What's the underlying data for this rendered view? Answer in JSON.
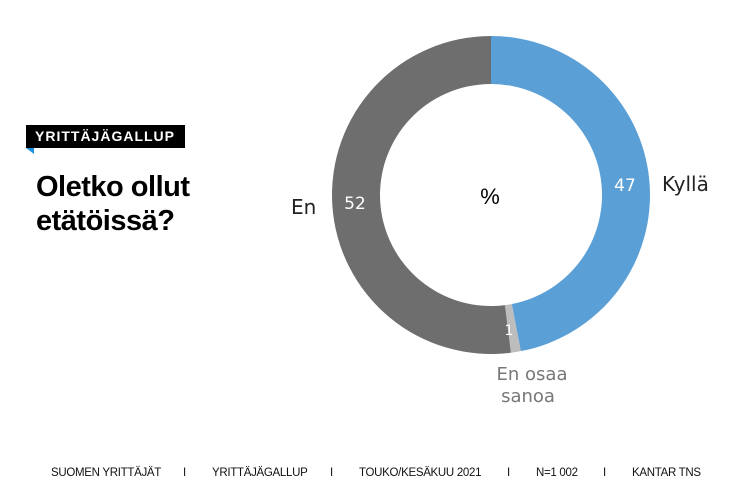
{
  "badge": "YRITTÄJÄGALLUP",
  "title_lines": [
    "Oletko ollut",
    "etätöissä?"
  ],
  "footer": [
    "SUOMEN YRITTÄJÄT",
    "I",
    "YRITTÄJÄGALLUP",
    "I",
    "TOUKO/KESÄKUU 2021",
    "I",
    "N=1 002",
    "I",
    "KANTAR TNS"
  ],
  "chart_data": {
    "type": "pie",
    "donut": true,
    "center_label": "%",
    "slices": [
      {
        "label": "Kyllä",
        "value": 47,
        "color": "#5b9fd7"
      },
      {
        "label": "En osaa sanoa",
        "value": 1,
        "color": "#bdbdbd"
      },
      {
        "label": "En",
        "value": 52,
        "color": "#6e6e6e"
      }
    ]
  }
}
